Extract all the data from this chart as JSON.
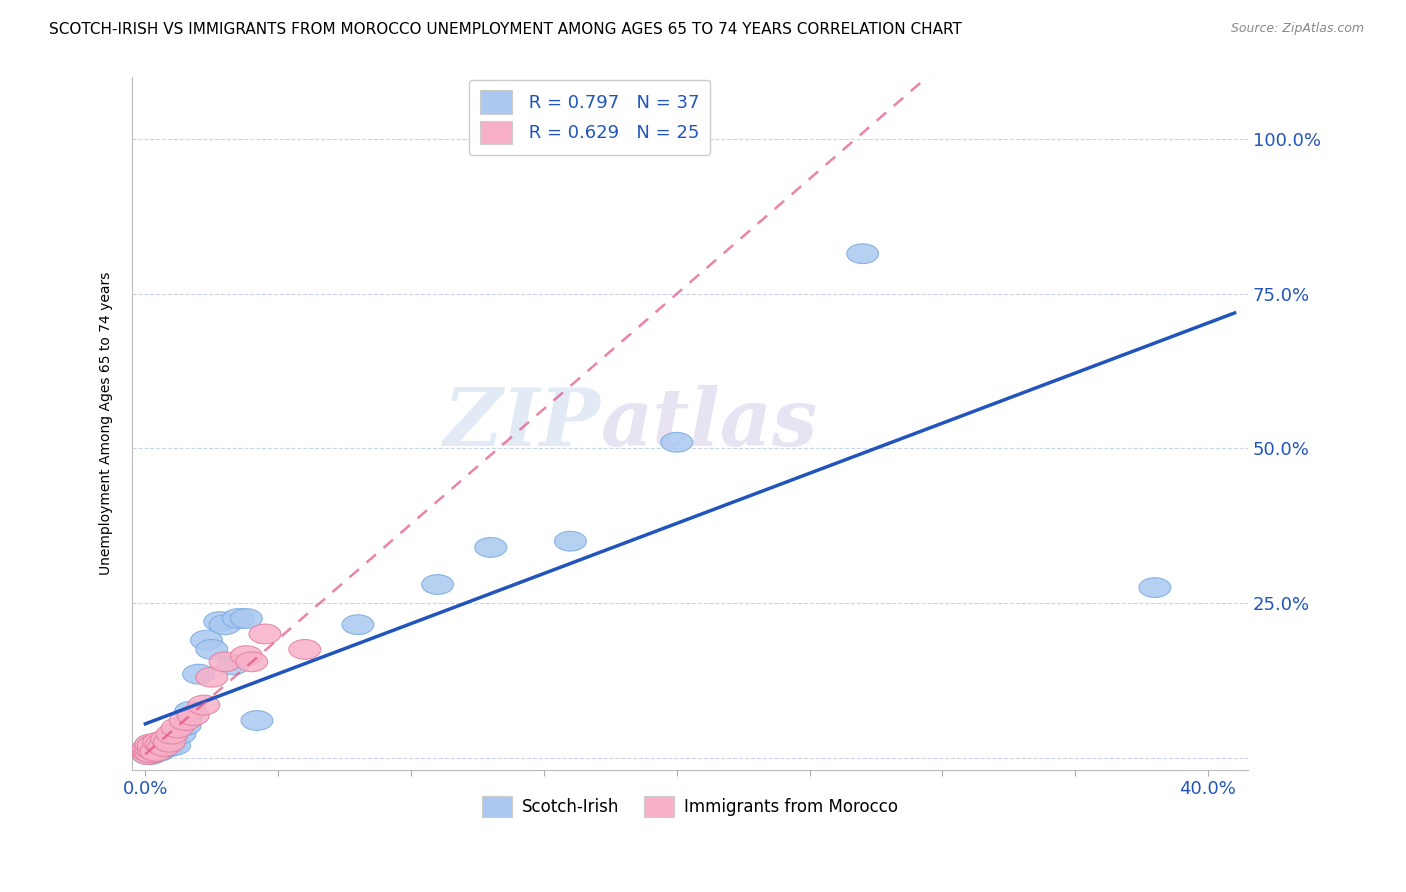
{
  "title": "SCOTCH-IRISH VS IMMIGRANTS FROM MOROCCO UNEMPLOYMENT AMONG AGES 65 TO 74 YEARS CORRELATION CHART",
  "source": "Source: ZipAtlas.com",
  "ylabel": "Unemployment Among Ages 65 to 74 years",
  "y_ticks_right": [
    0.0,
    0.25,
    0.5,
    0.75,
    1.0
  ],
  "y_tick_labels_right": [
    "",
    "25.0%",
    "50.0%",
    "75.0%",
    "100.0%"
  ],
  "xlim": [
    -0.005,
    0.415
  ],
  "ylim": [
    -0.02,
    1.1
  ],
  "scotch_irish_R": 0.797,
  "scotch_irish_N": 37,
  "morocco_R": 0.629,
  "morocco_N": 25,
  "scotch_irish_color": "#aac8f0",
  "scotch_irish_edge_color": "#7aaae0",
  "scotch_irish_line_color": "#2255bb",
  "morocco_color": "#f8b0c8",
  "morocco_edge_color": "#e080a0",
  "morocco_line_color": "#e05080",
  "scotch_irish_x": [
    0.001,
    0.001,
    0.001,
    0.002,
    0.002,
    0.002,
    0.003,
    0.003,
    0.004,
    0.004,
    0.005,
    0.005,
    0.006,
    0.007,
    0.008,
    0.009,
    0.01,
    0.011,
    0.013,
    0.015,
    0.017,
    0.02,
    0.023,
    0.025,
    0.028,
    0.03,
    0.033,
    0.035,
    0.038,
    0.042,
    0.08,
    0.11,
    0.13,
    0.16,
    0.2,
    0.27,
    0.38
  ],
  "scotch_irish_y": [
    0.005,
    0.01,
    0.015,
    0.005,
    0.012,
    0.02,
    0.008,
    0.018,
    0.012,
    0.022,
    0.01,
    0.02,
    0.025,
    0.015,
    0.022,
    0.018,
    0.03,
    0.02,
    0.038,
    0.052,
    0.075,
    0.135,
    0.19,
    0.175,
    0.22,
    0.215,
    0.15,
    0.225,
    0.225,
    0.06,
    0.215,
    0.28,
    0.34,
    0.35,
    0.51,
    0.815,
    0.275
  ],
  "morocco_x": [
    0.001,
    0.001,
    0.001,
    0.002,
    0.002,
    0.002,
    0.003,
    0.003,
    0.004,
    0.005,
    0.006,
    0.007,
    0.008,
    0.009,
    0.01,
    0.012,
    0.015,
    0.018,
    0.022,
    0.025,
    0.03,
    0.038,
    0.04,
    0.045,
    0.06
  ],
  "morocco_y": [
    0.005,
    0.01,
    0.015,
    0.008,
    0.015,
    0.022,
    0.012,
    0.02,
    0.01,
    0.025,
    0.022,
    0.018,
    0.03,
    0.025,
    0.038,
    0.048,
    0.06,
    0.068,
    0.085,
    0.13,
    0.155,
    0.165,
    0.155,
    0.2,
    0.175
  ],
  "watermark": "ZIPatlas",
  "background_color": "#ffffff",
  "grid_color": "#c8d4e8",
  "title_fontsize": 11,
  "axis_label_fontsize": 10
}
